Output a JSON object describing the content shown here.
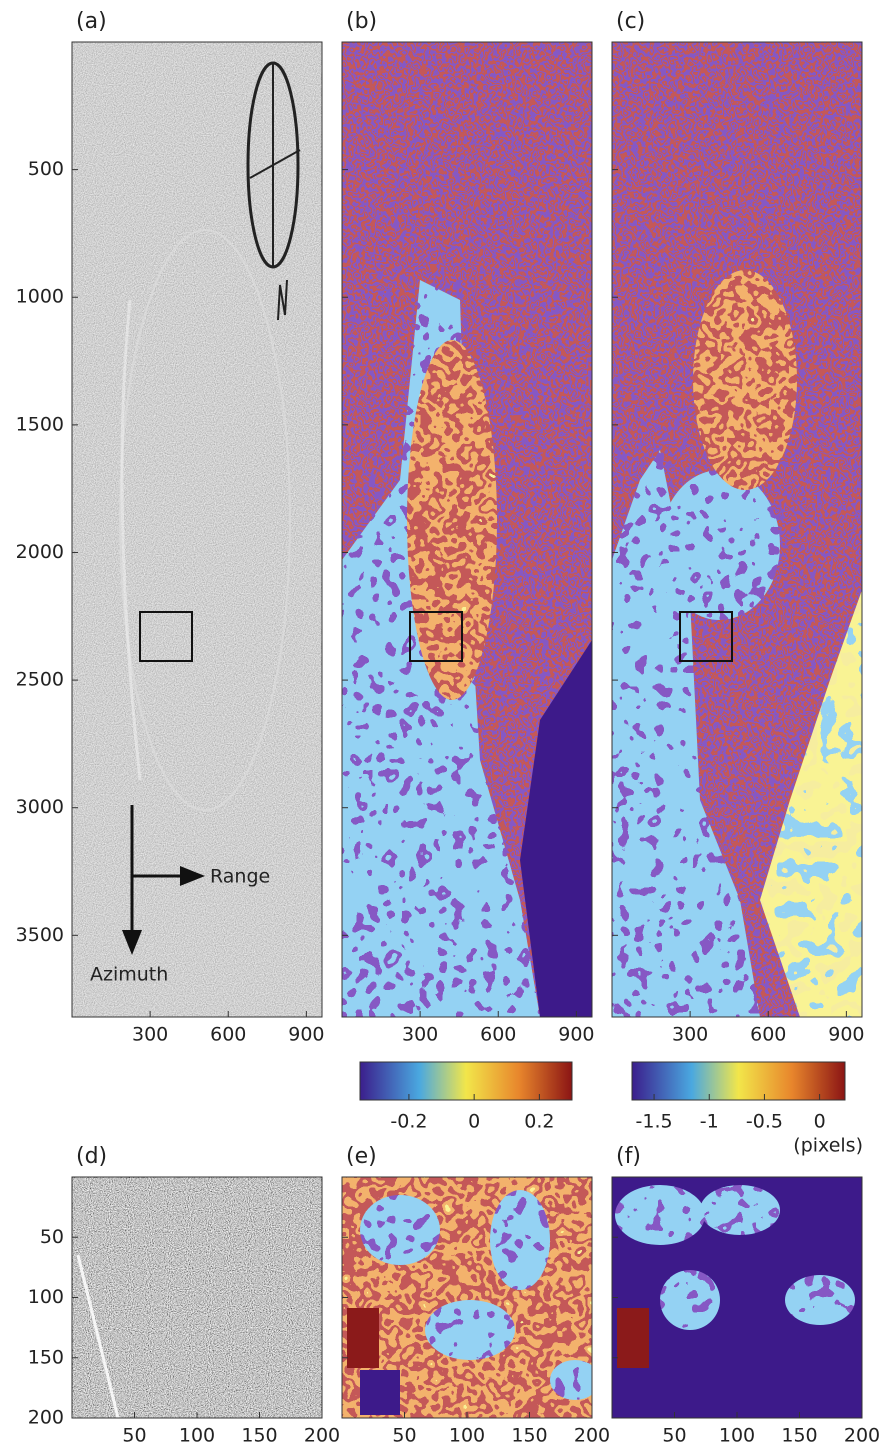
{
  "chart_data": [
    {
      "type": "image",
      "label": "(a)",
      "xlim": [
        0,
        960
      ],
      "ylim": [
        0,
        3820
      ],
      "y_reversed": true,
      "xticks": [
        300,
        600,
        900
      ],
      "yticks": [
        500,
        1000,
        1500,
        2000,
        2500,
        3000,
        3500
      ],
      "annotations": [
        "Range",
        "Azimuth"
      ]
    },
    {
      "type": "image",
      "label": "(b)",
      "xlim": [
        0,
        960
      ],
      "ylim": [
        0,
        3820
      ],
      "y_reversed": true,
      "xticks": [
        300,
        600,
        900
      ],
      "yticks": [
        500,
        1000,
        1500,
        2000,
        2500,
        3000,
        3500
      ],
      "ytick_labels": false,
      "colorbar": {
        "lim": [
          -0.35,
          0.3
        ],
        "ticks": [
          -0.2,
          0,
          0.2
        ]
      }
    },
    {
      "type": "image",
      "label": "(c)",
      "xlim": [
        0,
        960
      ],
      "ylim": [
        0,
        3820
      ],
      "y_reversed": true,
      "xticks": [
        300,
        600,
        900
      ],
      "yticks": [
        500,
        1000,
        1500,
        2000,
        2500,
        3000,
        3500
      ],
      "ytick_labels": false,
      "colorbar": {
        "lim": [
          -1.7,
          0.23
        ],
        "ticks": [
          -1.5,
          -1,
          -0.5,
          0
        ],
        "label": "(pixels)"
      }
    },
    {
      "type": "image",
      "label": "(d)",
      "xlim": [
        0,
        200
      ],
      "ylim": [
        0,
        200
      ],
      "y_reversed": true,
      "xticks": [
        50,
        100,
        150,
        200
      ],
      "yticks": [
        50,
        100,
        150,
        200
      ]
    },
    {
      "type": "image",
      "label": "(e)",
      "xlim": [
        0,
        200
      ],
      "ylim": [
        0,
        200
      ],
      "y_reversed": true,
      "xticks": [
        50,
        100,
        150,
        200
      ],
      "yticks": [
        50,
        100,
        150,
        200
      ],
      "ytick_labels": false
    },
    {
      "type": "image",
      "label": "(f)",
      "xlim": [
        0,
        200
      ],
      "ylim": [
        0,
        200
      ],
      "y_reversed": true,
      "xticks": [
        50,
        100,
        150,
        200
      ],
      "yticks": [
        50,
        100,
        150,
        200
      ],
      "ytick_labels": false
    }
  ]
}
